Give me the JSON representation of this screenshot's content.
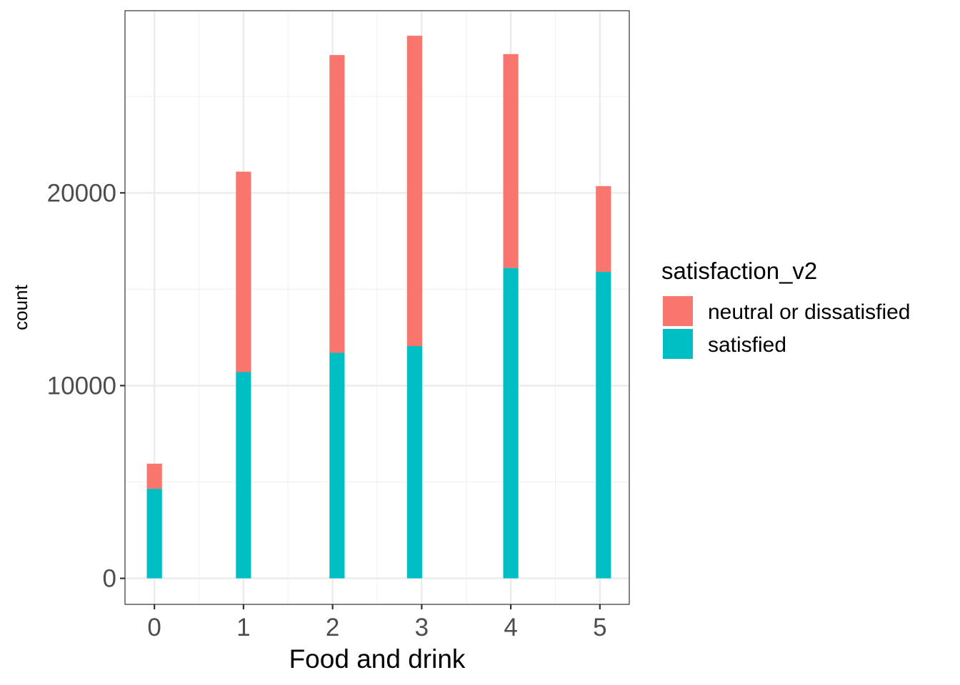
{
  "chart_data": {
    "type": "bar",
    "stacked": true,
    "title": "",
    "xlabel": "Food and drink",
    "ylabel": "count",
    "categories": [
      "0",
      "1",
      "2",
      "3",
      "4",
      "5"
    ],
    "x_values": [
      0,
      1,
      2.05,
      2.92,
      4,
      5.04
    ],
    "xlim": [
      -0.33,
      5.33
    ],
    "ylim": [
      -1350,
      29450
    ],
    "yticks": [
      0,
      10000,
      20000
    ],
    "ytick_labels": [
      "0",
      "10000",
      "20000"
    ],
    "grid": true,
    "legend": {
      "title": "satisfaction_v2",
      "position": "right"
    },
    "series": [
      {
        "name": "satisfied",
        "color": "#00BFC4",
        "values": [
          4650,
          10700,
          11700,
          12050,
          16100,
          15900
        ]
      },
      {
        "name": "neutral or dissatisfied",
        "color": "#F8766D",
        "values": [
          1300,
          10400,
          15450,
          16100,
          11100,
          4450
        ]
      }
    ]
  }
}
